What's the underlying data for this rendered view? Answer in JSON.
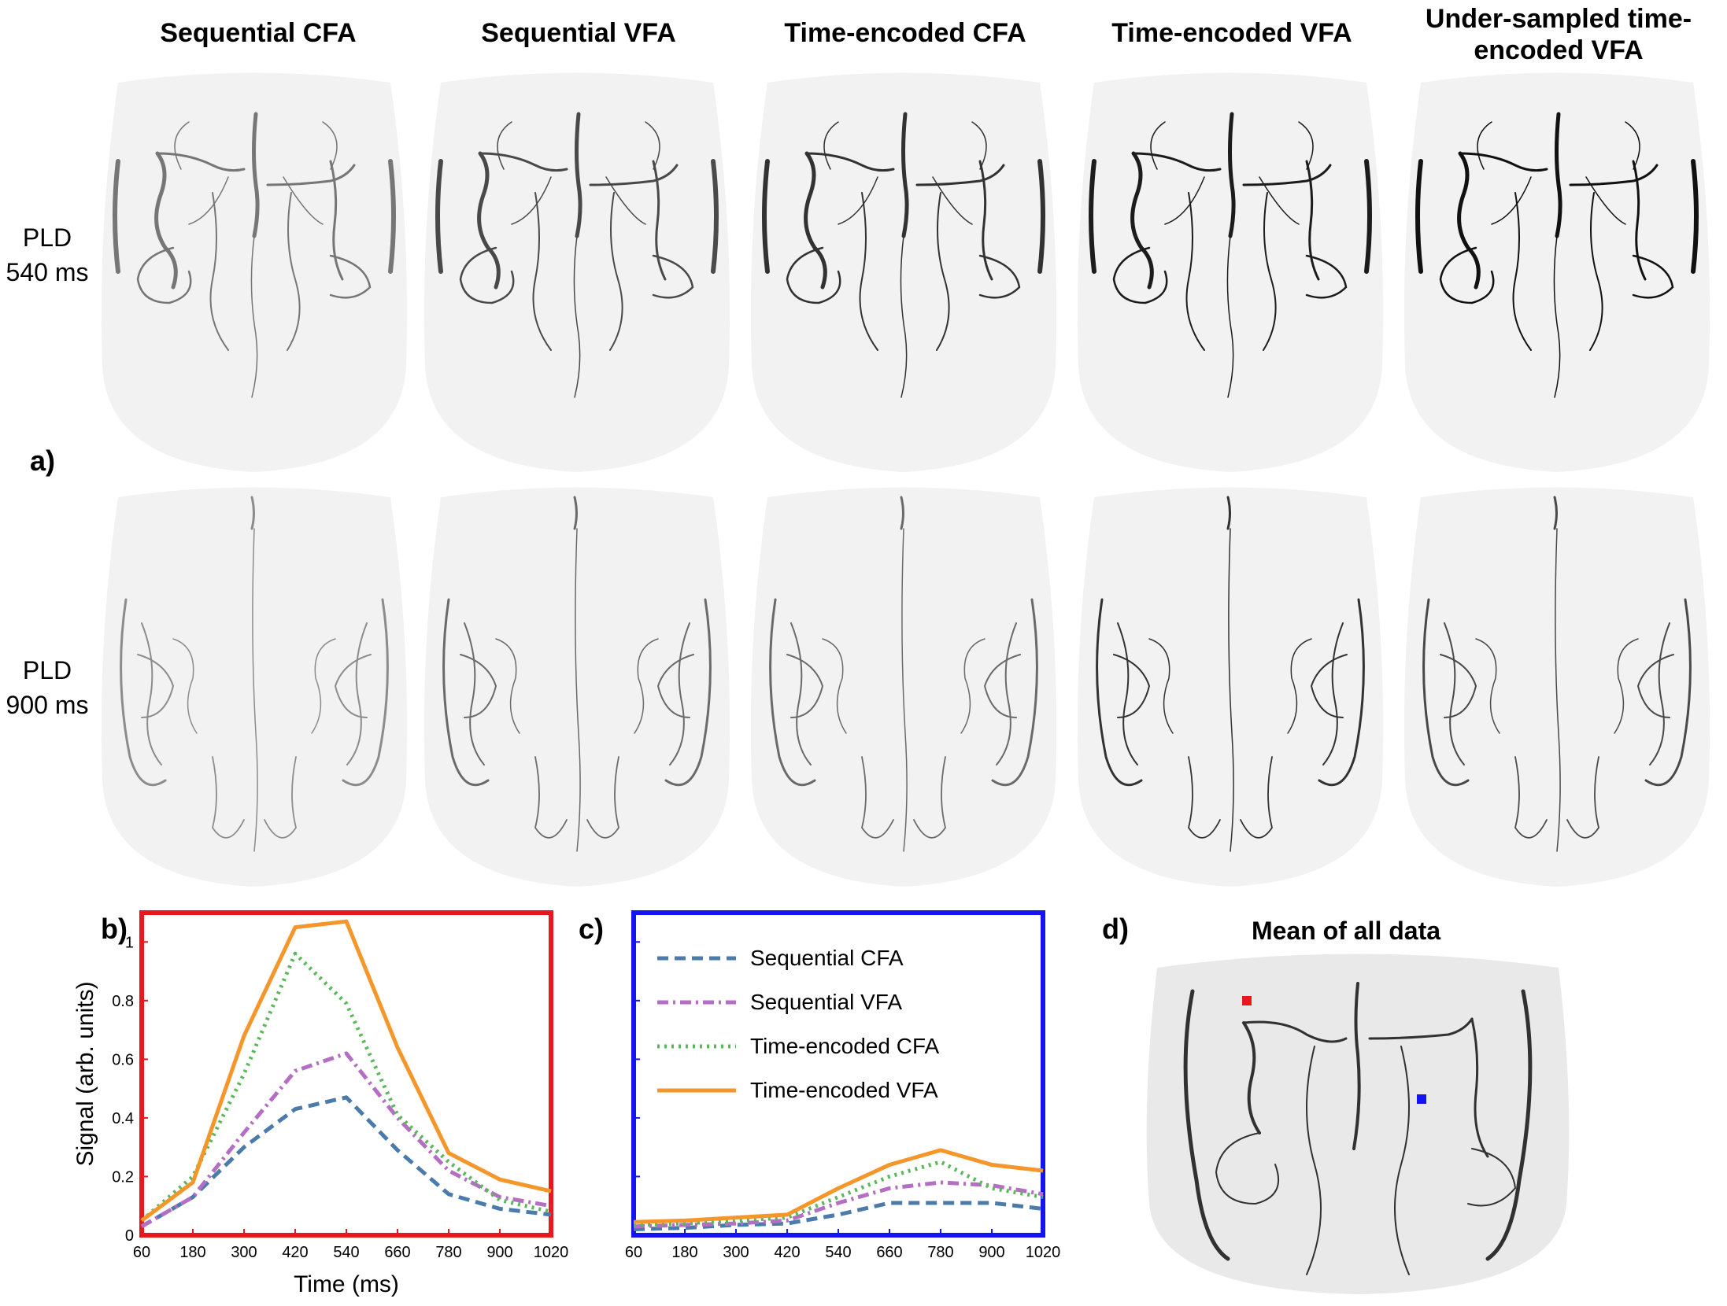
{
  "columns": [
    "Sequential CFA",
    "Sequential VFA",
    "Time-encoded CFA",
    "Time-encoded VFA",
    "Under-sampled time-encoded VFA"
  ],
  "rows": [
    {
      "line1": "PLD",
      "line2": "540 ms"
    },
    {
      "line1": "PLD",
      "line2": "900 ms"
    }
  ],
  "panels": {
    "a": "a)",
    "b": "b)",
    "c": "c)",
    "d": "d)"
  },
  "mean_title": "Mean of all data",
  "colors": {
    "b_frame": "#e8191e",
    "c_frame": "#1414f0",
    "marker_red": "#e8191e",
    "marker_blue": "#1414f0"
  },
  "chart_data": [
    {
      "type": "line",
      "panel": "b)",
      "x": [
        60,
        180,
        300,
        420,
        540,
        660,
        780,
        900,
        1020
      ],
      "xlabel": "Time (ms)",
      "ylabel": "Signal (arb. units)",
      "ylim": [
        0,
        1.1
      ],
      "yticks": [
        0,
        0.2,
        0.4,
        0.6,
        0.8,
        1
      ],
      "ytick_labels": [
        "0",
        "0.2",
        "0.4",
        "0.6",
        "0.8",
        "1"
      ],
      "series": [
        {
          "name": "Sequential CFA",
          "color": "#4a7bab",
          "dash": "dashed",
          "values": [
            0.03,
            0.13,
            0.3,
            0.43,
            0.47,
            0.29,
            0.14,
            0.09,
            0.07
          ]
        },
        {
          "name": "Sequential VFA",
          "color": "#b46ec3",
          "dash": "dashdot",
          "values": [
            0.03,
            0.13,
            0.35,
            0.56,
            0.62,
            0.4,
            0.22,
            0.13,
            0.1
          ]
        },
        {
          "name": "Time-encoded CFA",
          "color": "#5ab85a",
          "dash": "dotted",
          "values": [
            0.05,
            0.2,
            0.55,
            0.96,
            0.79,
            0.41,
            0.25,
            0.12,
            0.08
          ]
        },
        {
          "name": "Time-encoded VFA",
          "color": "#f5962a",
          "dash": "solid",
          "values": [
            0.05,
            0.18,
            0.68,
            1.05,
            1.07,
            0.64,
            0.28,
            0.19,
            0.15
          ]
        }
      ]
    },
    {
      "type": "line",
      "panel": "c)",
      "x": [
        60,
        180,
        300,
        420,
        540,
        660,
        780,
        900,
        1020
      ],
      "ylim": [
        0,
        1.1
      ],
      "legend_position": "top-left",
      "series": [
        {
          "name": "Sequential CFA",
          "color": "#4a7bab",
          "dash": "dashed",
          "values": [
            0.02,
            0.025,
            0.035,
            0.04,
            0.07,
            0.11,
            0.11,
            0.11,
            0.09
          ]
        },
        {
          "name": "Sequential VFA",
          "color": "#b46ec3",
          "dash": "dashdot",
          "values": [
            0.03,
            0.035,
            0.04,
            0.05,
            0.11,
            0.16,
            0.18,
            0.17,
            0.14
          ]
        },
        {
          "name": "Time-encoded CFA",
          "color": "#5ab85a",
          "dash": "dotted",
          "values": [
            0.035,
            0.04,
            0.05,
            0.06,
            0.13,
            0.2,
            0.25,
            0.16,
            0.13
          ]
        },
        {
          "name": "Time-encoded VFA",
          "color": "#f5962a",
          "dash": "solid",
          "values": [
            0.045,
            0.05,
            0.06,
            0.07,
            0.16,
            0.24,
            0.29,
            0.24,
            0.22
          ]
        }
      ]
    }
  ]
}
